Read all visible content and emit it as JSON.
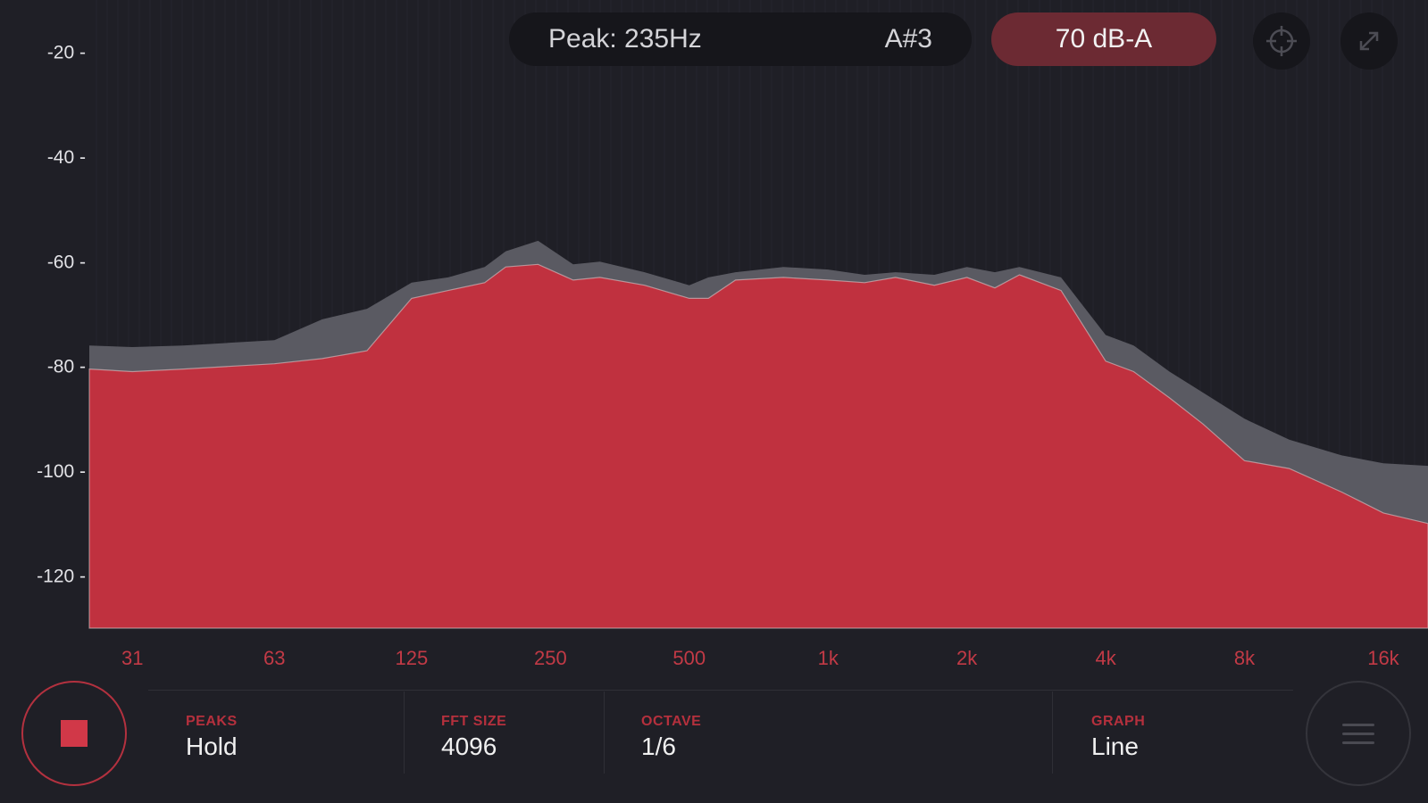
{
  "header": {
    "peak_text": "Peak: 235Hz",
    "note_text": "A#3",
    "db_text": "70 dB-A",
    "target_icon": "crosshair-icon",
    "expand_icon": "expand-icon"
  },
  "chart_data": {
    "type": "area",
    "title": "",
    "xlabel": "",
    "ylabel": "",
    "x_scale": "log",
    "x_ticks": [
      "31",
      "63",
      "125",
      "250",
      "500",
      "1k",
      "2k",
      "4k",
      "8k",
      "16k"
    ],
    "y_ticks": [
      "-20",
      "-40",
      "-60",
      "-80",
      "-100",
      "-120"
    ],
    "ylim": [
      -130,
      -10
    ],
    "xlim": [
      25,
      20000
    ],
    "grid": true,
    "series": [
      {
        "role": "peak-hold",
        "color": "#5a5a62",
        "x": [
          25,
          31,
          40,
          50,
          63,
          80,
          100,
          125,
          150,
          180,
          200,
          235,
          280,
          320,
          400,
          500,
          550,
          630,
          800,
          1000,
          1200,
          1400,
          1700,
          2000,
          2300,
          2600,
          3200,
          4000,
          4600,
          5500,
          6500,
          8000,
          10000,
          13000,
          16000,
          20000
        ],
        "y": [
          -76,
          -76.3,
          -76,
          -75.5,
          -75,
          -71,
          -69,
          -64,
          -63,
          -61,
          -58,
          -56,
          -60.5,
          -60,
          -62,
          -64.5,
          -63,
          -62,
          -61,
          -61.5,
          -62.5,
          -62,
          -62.5,
          -61,
          -62,
          -61,
          -63,
          -74,
          -76,
          -81,
          -85,
          -90,
          -94,
          -97,
          -98.5,
          -99
        ]
      },
      {
        "role": "current",
        "color": "#c0313f",
        "x": [
          25,
          31,
          40,
          50,
          63,
          80,
          100,
          125,
          150,
          180,
          200,
          235,
          280,
          320,
          400,
          500,
          550,
          630,
          800,
          1000,
          1200,
          1400,
          1700,
          2000,
          2300,
          2600,
          3200,
          4000,
          4600,
          5500,
          6500,
          8000,
          10000,
          13000,
          16000,
          20000
        ],
        "y": [
          -80.5,
          -81,
          -80.5,
          -80,
          -79.5,
          -78.5,
          -77,
          -67,
          -65.5,
          -64,
          -61,
          -60.5,
          -63.5,
          -63,
          -64.5,
          -67,
          -67,
          -63.5,
          -63,
          -63.5,
          -64,
          -63,
          -64.5,
          -63,
          -65,
          -62.5,
          -65.5,
          -79,
          -81,
          -86,
          -91,
          -98,
          -99.5,
          -104,
          -108,
          -110
        ]
      }
    ]
  },
  "settings": [
    {
      "label": "PEAKS",
      "value": "Hold"
    },
    {
      "label": "FFT SIZE",
      "value": "4096"
    },
    {
      "label": "OCTAVE",
      "value": "1/6"
    },
    {
      "label": "GRAPH",
      "value": "Line"
    }
  ],
  "controls": {
    "stop_icon": "stop-icon",
    "menu_icon": "menu-icon"
  },
  "colors": {
    "background": "#1f1f26",
    "accent": "#c0313f",
    "peak_hold": "#5a5a62",
    "db_pill": "#6c2a33"
  }
}
